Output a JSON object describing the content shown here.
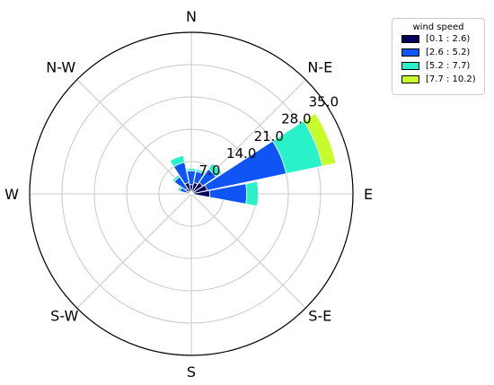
{
  "chart_data": {
    "type": "windrose",
    "directions": [
      "N",
      "N-E",
      "E",
      "S-E",
      "S",
      "S-W",
      "W",
      "N-W"
    ],
    "radial_ticks": [
      "7.0",
      "14.0",
      "21.0",
      "28.0",
      "35.0"
    ],
    "radial_tick_values": [
      7,
      14,
      21,
      28,
      35
    ],
    "rmax": 35,
    "legend_title": "wind speed",
    "bins": [
      {
        "label": "[0.1 : 2.6)",
        "color": "#00005a"
      },
      {
        "label": "[2.6 : 5.2)",
        "color": "#0f55f5"
      },
      {
        "label": "[5.2 : 7.7)",
        "color": "#29f2c8"
      },
      {
        "label": "[7.7 : 10.2)",
        "color": "#c6fb2c"
      }
    ],
    "sectors": [
      {
        "direction_deg": 0,
        "counts": [
          2.0,
          3.0,
          0.5,
          0.0
        ]
      },
      {
        "direction_deg": 22.5,
        "counts": [
          2.5,
          2.5,
          0.5,
          0.0
        ]
      },
      {
        "direction_deg": 45,
        "counts": [
          3.0,
          3.5,
          1.5,
          0.0
        ]
      },
      {
        "direction_deg": 67.5,
        "counts": [
          3.5,
          17.5,
          8.0,
          3.0
        ]
      },
      {
        "direction_deg": 90,
        "counts": [
          4.0,
          8.0,
          2.5,
          0.0
        ]
      },
      {
        "direction_deg": 112.5,
        "counts": [
          0.5,
          0.0,
          0.0,
          0.0
        ]
      },
      {
        "direction_deg": 292.5,
        "counts": [
          1.0,
          1.5,
          0.5,
          0.0
        ]
      },
      {
        "direction_deg": 315,
        "counts": [
          1.5,
          3.0,
          0.5,
          0.0
        ]
      },
      {
        "direction_deg": 337.5,
        "counts": [
          2.5,
          4.5,
          1.5,
          0.0
        ]
      }
    ]
  }
}
